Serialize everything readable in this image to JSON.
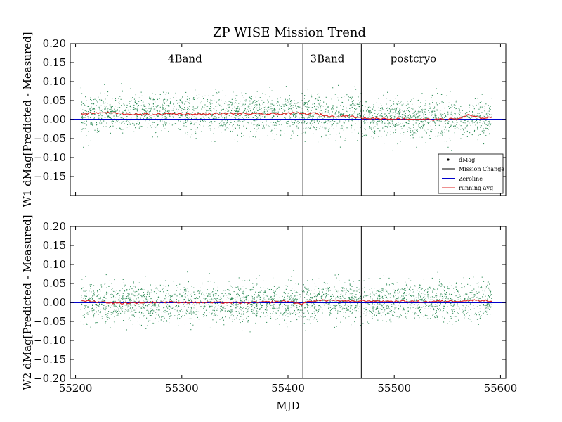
{
  "figure": {
    "title": "ZP WISE Mission Trend"
  },
  "legend": {
    "location": "lower-right of top panel",
    "entries": [
      {
        "label": "dMag",
        "marker": "dot"
      },
      {
        "label": "Mission Change",
        "marker": "black-line"
      },
      {
        "label": "Zeroline",
        "marker": "blue-line"
      },
      {
        "label": "running avg",
        "marker": "red-line"
      }
    ]
  },
  "colors": {
    "points": "#2e8b57",
    "mission_change": "#000000",
    "zeroline": "#0000cc",
    "running_avg": "#dd2222"
  },
  "chart_data": [
    {
      "type": "scatter",
      "xlabel": "",
      "ylabel": "W1 dMag[Predicted - Measured]",
      "xlim": [
        55195,
        55605
      ],
      "ylim": [
        -0.2,
        0.2
      ],
      "x_ticks": [
        55200,
        55300,
        55400,
        55500,
        55600
      ],
      "x_tick_labels": [],
      "y_ticks": [
        -0.15,
        -0.1,
        -0.05,
        0.0,
        0.05,
        0.1,
        0.15,
        0.2
      ],
      "y_tick_labels": [
        "−0.15",
        "−0.10",
        "−0.05",
        "0.00",
        "0.05",
        "0.10",
        "0.15",
        "0.20"
      ],
      "grid": false,
      "mission_changes": [
        55414,
        55469
      ],
      "phase_labels": [
        {
          "text": "4Band",
          "x": 55303,
          "y": 0.16
        },
        {
          "text": "3Band",
          "x": 55437,
          "y": 0.16
        },
        {
          "text": "postcryo",
          "x": 55518,
          "y": 0.16
        }
      ],
      "zeroline": 0.0,
      "running_avg": {
        "x": [
          55205,
          55230,
          55260,
          55290,
          55320,
          55350,
          55380,
          55410,
          55414,
          55425,
          55440,
          55455,
          55469,
          55480,
          55500,
          55520,
          55540,
          55560,
          55570,
          55580,
          55592
        ],
        "y": [
          0.015,
          0.018,
          0.013,
          0.015,
          0.014,
          0.016,
          0.014,
          0.017,
          0.015,
          0.016,
          0.008,
          0.01,
          0.004,
          0.003,
          0.002,
          0.001,
          0.0,
          0.002,
          0.012,
          0.004,
          0.006
        ]
      },
      "scatter_segments": [
        {
          "x": [
            55205,
            55414
          ],
          "center": 0.015,
          "spread": 0.035
        },
        {
          "x": [
            55414,
            55469
          ],
          "center": 0.012,
          "spread": 0.04
        },
        {
          "x": [
            55469,
            55592
          ],
          "center": 0.003,
          "spread": 0.035
        }
      ]
    },
    {
      "type": "scatter",
      "xlabel": "MJD",
      "ylabel": "W2 dMag[Predicted - Measured]",
      "xlim": [
        55195,
        55605
      ],
      "ylim": [
        -0.2,
        0.2
      ],
      "x_ticks": [
        55200,
        55300,
        55400,
        55500,
        55600
      ],
      "x_tick_labels": [
        "55200",
        "55300",
        "55400",
        "55500",
        "55600"
      ],
      "y_ticks": [
        -0.2,
        -0.15,
        -0.1,
        -0.05,
        0.0,
        0.05,
        0.1,
        0.15,
        0.2
      ],
      "y_tick_labels": [
        "−0.20",
        "−0.15",
        "−0.10",
        "−0.05",
        "0.00",
        "0.05",
        "0.10",
        "0.15",
        "0.20"
      ],
      "grid": false,
      "mission_changes": [
        55414,
        55469
      ],
      "zeroline": 0.0,
      "running_avg": {
        "x": [
          55205,
          55240,
          55280,
          55320,
          55360,
          55400,
          55414,
          55420,
          55440,
          55460,
          55469,
          55500,
          55530,
          55560,
          55580,
          55592
        ],
        "y": [
          0.005,
          -0.002,
          0.001,
          0.0,
          -0.001,
          0.003,
          -0.005,
          0.004,
          0.006,
          0.002,
          0.004,
          0.003,
          0.002,
          0.004,
          0.006,
          0.003
        ]
      },
      "scatter_segments": [
        {
          "x": [
            55205,
            55414
          ],
          "center": 0.0,
          "spread": 0.035
        },
        {
          "x": [
            55414,
            55469
          ],
          "center": 0.002,
          "spread": 0.035
        },
        {
          "x": [
            55469,
            55592
          ],
          "center": 0.003,
          "spread": 0.035
        }
      ]
    }
  ]
}
